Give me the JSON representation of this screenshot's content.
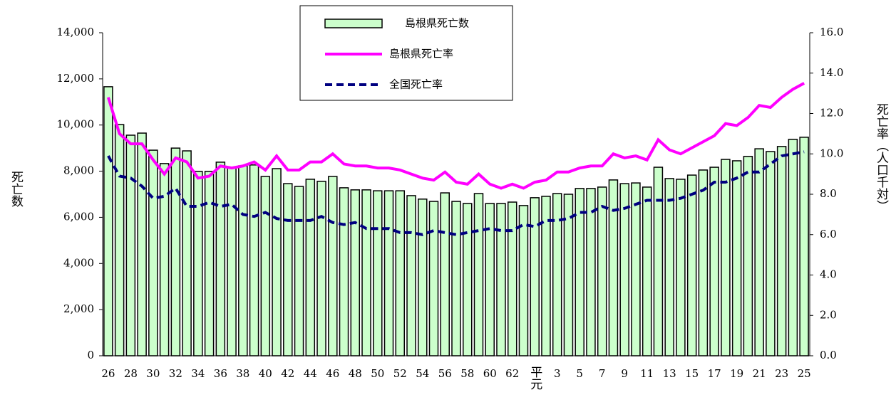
{
  "chart_data": {
    "type": "bar",
    "categories": [
      "26",
      null,
      "28",
      null,
      "30",
      null,
      "32",
      null,
      "34",
      null,
      "36",
      null,
      "38",
      null,
      "40",
      null,
      "42",
      null,
      "44",
      null,
      "46",
      null,
      "48",
      null,
      "50",
      null,
      "52",
      null,
      "54",
      null,
      "56",
      null,
      "58",
      null,
      "60",
      null,
      "62",
      null,
      "平元",
      null,
      "3",
      null,
      "5",
      null,
      "7",
      null,
      "9",
      null,
      "11",
      null,
      "13",
      null,
      "15",
      null,
      "17",
      null,
      "19",
      null,
      "21",
      null,
      "23",
      null,
      "25"
    ],
    "series": [
      {
        "name": "島根県死亡数",
        "type": "bar",
        "color": "#ccffcc",
        "values": [
          11660,
          10020,
          9560,
          9650,
          8910,
          8330,
          9000,
          8880,
          7990,
          7990,
          8390,
          8170,
          8230,
          8270,
          7770,
          8110,
          7460,
          7340,
          7650,
          7560,
          7770,
          7280,
          7190,
          7190,
          7150,
          7150,
          7150,
          6940,
          6790,
          6690,
          7060,
          6690,
          6600,
          7030,
          6600,
          6600,
          6660,
          6510,
          6850,
          6910,
          7030,
          7000,
          7250,
          7250,
          7310,
          7620,
          7460,
          7490,
          7310,
          8170,
          7680,
          7650,
          7830,
          8050,
          8170,
          8510,
          8450,
          8640,
          8970,
          8850,
          9070,
          9380,
          9470
        ]
      },
      {
        "name": "島根県死亡率",
        "type": "line",
        "axis": "y2",
        "color": "#ff00ff",
        "values": [
          12.8,
          11.0,
          10.5,
          10.5,
          9.7,
          9.0,
          9.8,
          9.6,
          8.8,
          8.9,
          9.4,
          9.3,
          9.4,
          9.6,
          9.2,
          9.9,
          9.2,
          9.2,
          9.6,
          9.6,
          10.0,
          9.5,
          9.4,
          9.4,
          9.3,
          9.3,
          9.2,
          9.0,
          8.8,
          8.7,
          9.1,
          8.6,
          8.5,
          9.0,
          8.5,
          8.3,
          8.5,
          8.3,
          8.6,
          8.7,
          9.1,
          9.1,
          9.3,
          9.4,
          9.4,
          10.0,
          9.8,
          9.9,
          9.7,
          10.7,
          10.2,
          10.0,
          10.3,
          10.6,
          10.9,
          11.5,
          11.4,
          11.8,
          12.4,
          12.3,
          12.8,
          13.2,
          13.5
        ]
      },
      {
        "name": "全国死亡率",
        "type": "line",
        "axis": "y2",
        "dashed": true,
        "color": "#000080",
        "values": [
          9.9,
          8.9,
          8.8,
          8.4,
          7.8,
          7.9,
          8.3,
          7.4,
          7.4,
          7.6,
          7.4,
          7.5,
          7.0,
          6.9,
          7.1,
          6.8,
          6.7,
          6.7,
          6.7,
          6.9,
          6.6,
          6.5,
          6.6,
          6.3,
          6.3,
          6.3,
          6.1,
          6.1,
          6.0,
          6.2,
          6.1,
          6.0,
          6.1,
          6.2,
          6.3,
          6.2,
          6.2,
          6.5,
          6.4,
          6.7,
          6.7,
          6.8,
          7.1,
          7.1,
          7.4,
          7.2,
          7.3,
          7.5,
          7.7,
          7.7,
          7.7,
          7.8,
          8.0,
          8.2,
          8.6,
          8.6,
          8.8,
          9.1,
          9.1,
          9.5,
          9.9,
          10.0,
          10.1
        ]
      }
    ],
    "y_label": "死亡数",
    "y2_label": "死亡率（人口千対）",
    "ylim": [
      0,
      14000
    ],
    "yticks": [
      0,
      {
        "value": 2000,
        "label": "2,000"
      },
      {
        "value": 4000,
        "label": "4,000"
      },
      {
        "value": 6000,
        "label": "6,000"
      },
      {
        "value": 8000,
        "label": "8,000"
      },
      {
        "value": 10000,
        "label": "10,000"
      },
      {
        "value": 12000,
        "label": "12,000"
      },
      {
        "value": 14000,
        "label": "14,000"
      }
    ],
    "y2lim": [
      0,
      16
    ],
    "y2ticks": [
      {
        "value": 0,
        "label": "0.0"
      },
      {
        "value": 2,
        "label": "2.0"
      },
      {
        "value": 4,
        "label": "4.0"
      },
      {
        "value": 6,
        "label": "6.0"
      },
      {
        "value": 8,
        "label": "8.0"
      },
      {
        "value": 10,
        "label": "10.0"
      },
      {
        "value": 12,
        "label": "12.0"
      },
      {
        "value": 14,
        "label": "14.0"
      },
      {
        "value": 16,
        "label": "16.0"
      }
    ],
    "legend": "top"
  }
}
